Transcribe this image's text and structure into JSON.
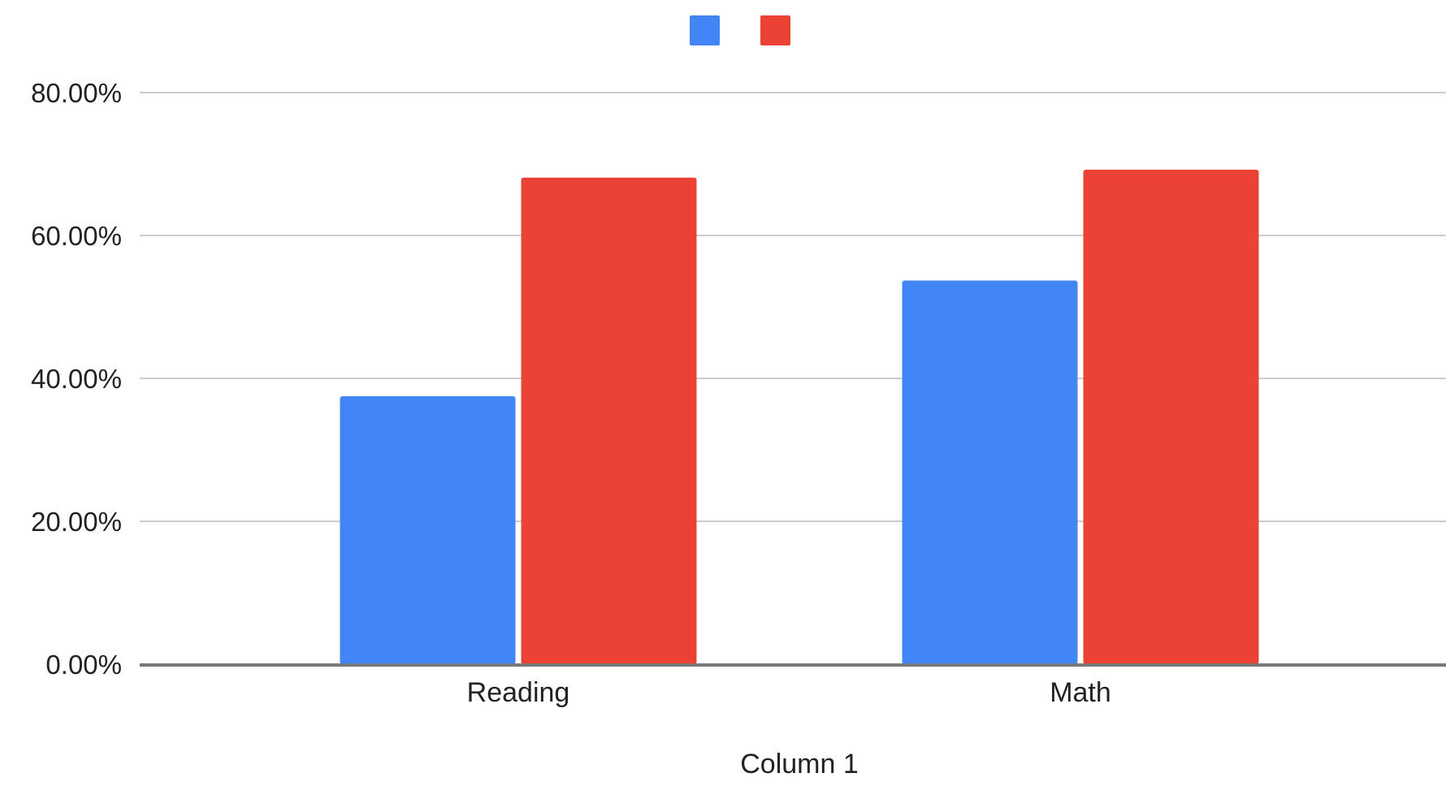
{
  "chart_data": {
    "type": "bar",
    "categories": [
      "Reading",
      "Math"
    ],
    "series": [
      {
        "color": "#4285f4",
        "values": [
          37.5,
          53.7
        ]
      },
      {
        "color": "#ea4335",
        "values": [
          68.1,
          69.2
        ]
      }
    ],
    "xlabel": "Column 1",
    "ylabel": "",
    "ylim": [
      0,
      80
    ],
    "yticks": [
      "0.00%",
      "20.00%",
      "40.00%",
      "60.00%",
      "80.00%"
    ],
    "ytick_values": [
      0,
      20,
      40,
      60,
      80
    ],
    "grid": true,
    "legend": "top-center"
  }
}
